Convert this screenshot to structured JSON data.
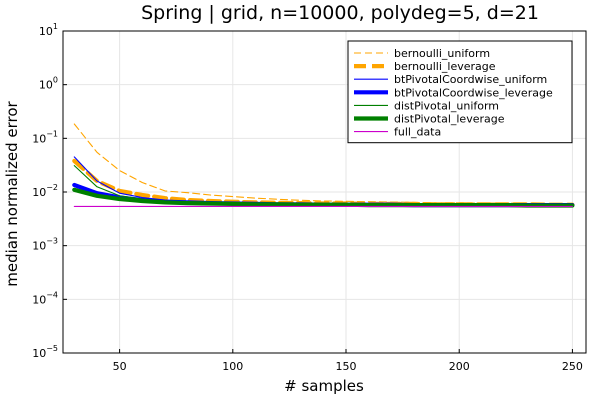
{
  "chart_data": {
    "type": "line",
    "title": "Spring | grid, n=10000, polydeg=5, d=21",
    "xlabel": "# samples",
    "ylabel": "median normalized error",
    "xlim": [
      25,
      256
    ],
    "ylim": [
      1e-05,
      10
    ],
    "yscale": "log",
    "grid": true,
    "legend_position": "top-right",
    "x_ticks": [
      50,
      100,
      150,
      200,
      250
    ],
    "y_ticks": [
      {
        "base": "10",
        "exp": "1",
        "value": 10
      },
      {
        "base": "10",
        "exp": "0",
        "value": 1
      },
      {
        "base": "10",
        "exp": "−1",
        "value": 0.1
      },
      {
        "base": "10",
        "exp": "−2",
        "value": 0.01
      },
      {
        "base": "10",
        "exp": "−3",
        "value": 0.001
      },
      {
        "base": "10",
        "exp": "−4",
        "value": 0.0001
      },
      {
        "base": "10",
        "exp": "−5",
        "value": 1e-05
      }
    ],
    "x": [
      30,
      40,
      50,
      60,
      70,
      80,
      90,
      100,
      110,
      120,
      130,
      140,
      150,
      160,
      170,
      180,
      190,
      200,
      210,
      220,
      230,
      240,
      250
    ],
    "series": [
      {
        "name": "bernoulli_uniform",
        "color": "#FFA500",
        "style": "dashed",
        "width": "thin",
        "values": [
          0.185,
          0.055,
          0.025,
          0.015,
          0.0105,
          0.0097,
          0.0088,
          0.0082,
          0.0077,
          0.0073,
          0.007,
          0.0068,
          0.0067,
          0.0066,
          0.0065,
          0.0064,
          0.0063,
          0.0063,
          0.0062,
          0.0062,
          0.0061,
          0.0061,
          0.006
        ]
      },
      {
        "name": "bernoulli_leverage",
        "color": "#FFA500",
        "style": "dashed",
        "width": "thick",
        "values": [
          0.038,
          0.016,
          0.0105,
          0.0088,
          0.0077,
          0.0071,
          0.0068,
          0.0066,
          0.0064,
          0.0063,
          0.0062,
          0.0061,
          0.0061,
          0.006,
          0.006,
          0.006,
          0.0059,
          0.0059,
          0.0059,
          0.0059,
          0.0059,
          0.0058,
          0.0058
        ]
      },
      {
        "name": "btPivotalCoordwise_uniform",
        "color": "#0000FF",
        "style": "solid",
        "width": "thin",
        "values": [
          0.045,
          0.016,
          0.0095,
          0.0079,
          0.0071,
          0.0067,
          0.0064,
          0.0062,
          0.0061,
          0.006,
          0.006,
          0.0059,
          0.0059,
          0.0059,
          0.0058,
          0.0058,
          0.0058,
          0.0058,
          0.0058,
          0.0058,
          0.0058,
          0.0057,
          0.0057
        ]
      },
      {
        "name": "btPivotalCoordwise_leverage",
        "color": "#0000FF",
        "style": "solid",
        "width": "thick",
        "values": [
          0.0135,
          0.0095,
          0.0079,
          0.0071,
          0.0066,
          0.0064,
          0.0062,
          0.0061,
          0.006,
          0.0059,
          0.0059,
          0.0058,
          0.0058,
          0.0058,
          0.0058,
          0.0057,
          0.0057,
          0.0057,
          0.0057,
          0.0057,
          0.0057,
          0.0057,
          0.0057
        ]
      },
      {
        "name": "distPivotal_uniform",
        "color": "#008000",
        "style": "solid",
        "width": "thin",
        "values": [
          0.031,
          0.0125,
          0.0085,
          0.0074,
          0.0068,
          0.0065,
          0.0063,
          0.0062,
          0.0061,
          0.006,
          0.0059,
          0.0059,
          0.0059,
          0.0058,
          0.0058,
          0.0058,
          0.0058,
          0.0058,
          0.0057,
          0.0057,
          0.0057,
          0.0057,
          0.0057
        ]
      },
      {
        "name": "distPivotal_leverage",
        "color": "#008000",
        "style": "solid",
        "width": "thick",
        "values": [
          0.011,
          0.0085,
          0.0074,
          0.0068,
          0.0064,
          0.0062,
          0.0061,
          0.006,
          0.0059,
          0.0059,
          0.0058,
          0.0058,
          0.0058,
          0.0057,
          0.0057,
          0.0057,
          0.0057,
          0.0057,
          0.0057,
          0.0057,
          0.0056,
          0.0056,
          0.0056
        ]
      },
      {
        "name": "full_data",
        "color": "#CC00CC",
        "style": "solid",
        "width": "thin",
        "values": [
          0.0054,
          0.0054,
          0.0054,
          0.0054,
          0.0054,
          0.0054,
          0.0054,
          0.0054,
          0.0054,
          0.0054,
          0.0054,
          0.0054,
          0.0054,
          0.0054,
          0.0054,
          0.0054,
          0.0054,
          0.0054,
          0.0054,
          0.0054,
          0.0054,
          0.0054,
          0.0054
        ]
      }
    ]
  }
}
